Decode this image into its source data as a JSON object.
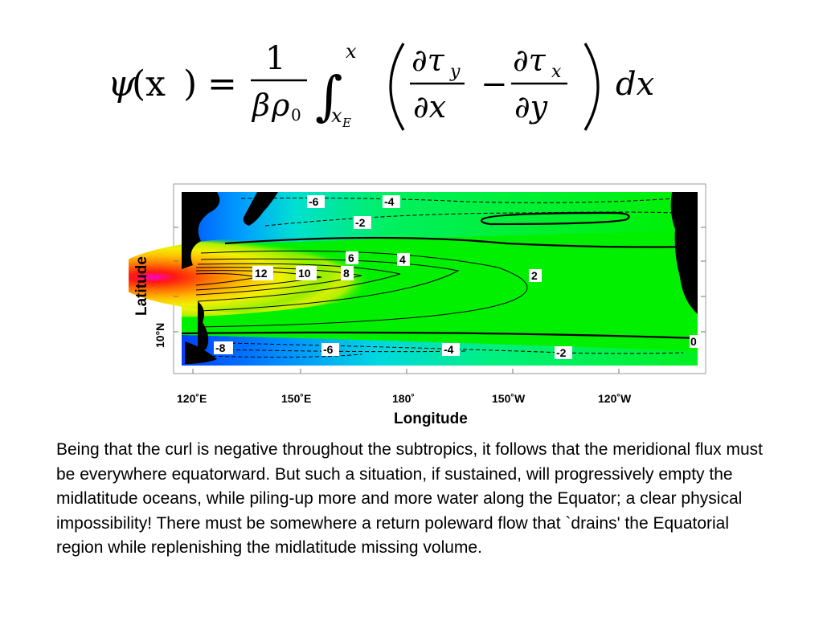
{
  "equation": {
    "lhs_psi": "ψ",
    "lhs_arg": "(x",
    "lhs_close": ")",
    "equals": "=",
    "frac_num": "1",
    "frac_den_beta": "β",
    "frac_den_rho": "ρ",
    "frac_den_sub": "0",
    "integral": "∫",
    "upper_limit": "x",
    "lower_limit": "x",
    "lower_limit_sub": "E",
    "d_tau_y_num": "∂τ",
    "d_tau_y_sub": "y",
    "d_tau_y_den": "∂x",
    "minus": "−",
    "d_tau_x_num": "∂τ",
    "d_tau_x_sub": "x",
    "d_tau_x_den": "∂y",
    "dx": "dx"
  },
  "figure": {
    "ylabel": "Latitude",
    "ylabel_tick": "10°N",
    "xlabel": "Longitude",
    "xticks": [
      "120˚E",
      "150˚E",
      "180˚",
      "150˚W",
      "120˚W"
    ],
    "contour_labels": [
      "-6",
      "-4",
      "-2",
      "6",
      "4",
      "12",
      "10",
      "8",
      "2",
      "0",
      "-8",
      "-6",
      "-4",
      "-2"
    ],
    "colors": {
      "magenta": "#ff00cc",
      "red": "#ff2000",
      "orange": "#ff8c00",
      "yellow": "#f0f000",
      "green": "#00f000",
      "cyan": "#00e8d0",
      "blue": "#0060ff",
      "land": "#000000"
    }
  },
  "caption": {
    "text": "Being that the curl is negative throughout the subtropics, it follows that the meridional flux must be everywhere equatorward. But such a situation, if sustained, will progressively empty the midlatitude oceans, while piling-up more and more water along the Equator; a clear physical impossibility! There must be somewhere a return poleward flow that `drains' the Equatorial region while replenishing the midlatitude missing volume."
  }
}
